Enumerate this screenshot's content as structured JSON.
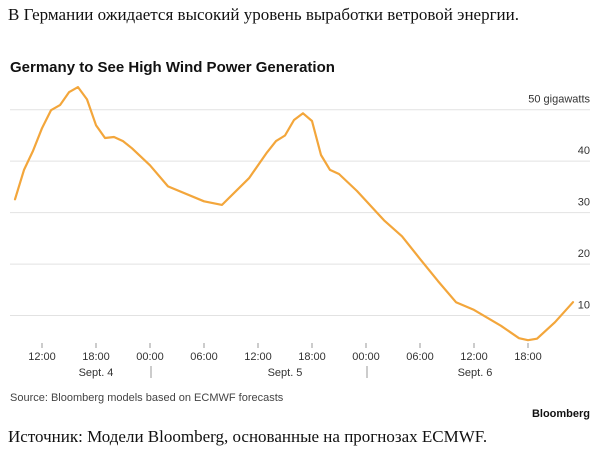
{
  "intro": "В Германии ожидается высокий уровень выработки ветровой энергии.",
  "chart_data": {
    "type": "line",
    "title": "Germany to See High Wind Power Generation",
    "x": [
      "Sept. 4 09:00",
      "Sept. 4 10:00",
      "Sept. 4 11:00",
      "Sept. 4 12:00",
      "Sept. 4 13:00",
      "Sept. 4 14:00",
      "Sept. 4 15:00",
      "Sept. 4 16:00",
      "Sept. 4 17:00",
      "Sept. 4 18:00",
      "Sept. 4 19:00",
      "Sept. 4 20:00",
      "Sept. 4 21:00",
      "Sept. 4 22:00",
      "Sept. 5 00:00",
      "Sept. 5 02:00",
      "Sept. 5 06:00",
      "Sept. 5 08:00",
      "Sept. 5 11:00",
      "Sept. 5 13:00",
      "Sept. 5 14:00",
      "Sept. 5 15:00",
      "Sept. 5 16:00",
      "Sept. 5 17:00",
      "Sept. 5 18:00",
      "Sept. 5 19:00",
      "Sept. 5 20:00",
      "Sept. 5 21:00",
      "Sept. 5 23:00",
      "Sept. 6 02:00",
      "Sept. 6 04:00",
      "Sept. 6 06:00",
      "Sept. 6 08:00",
      "Sept. 6 10:00",
      "Sept. 6 12:00",
      "Sept. 6 15:00",
      "Sept. 6 17:00",
      "Sept. 6 18:00",
      "Sept. 6 19:00",
      "Sept. 6 21:00",
      "Sept. 6 23:00"
    ],
    "series": [
      {
        "name": "Wind power generation",
        "color": "#f3a63b",
        "values": [
          32.6,
          38.3,
          42,
          46.4,
          49.9,
          50.9,
          53.4,
          54.4,
          52,
          47,
          44.5,
          44.7,
          43.9,
          42.5,
          39.2,
          35.1,
          32.2,
          31.5,
          36.7,
          41.7,
          43.9,
          45,
          48,
          49.3,
          47.8,
          41.2,
          38.3,
          37.5,
          34.2,
          28.5,
          25.4,
          21,
          16.7,
          12.6,
          11.1,
          8,
          5.6,
          5.2,
          5.5,
          8.7,
          12.6
        ]
      }
    ],
    "ylim": [
      4,
      55
    ],
    "yticks": [
      10,
      20,
      30,
      40,
      {
        "value": 50,
        "label": "50 gigawatts"
      }
    ],
    "xticks": [
      {
        "value": "Sept. 4 12:00",
        "label": "12:00"
      },
      {
        "value": "Sept. 4 18:00",
        "label": "18:00"
      },
      {
        "value": "Sept. 5 00:00",
        "label": "00:00"
      },
      {
        "value": "Sept. 5 06:00",
        "label": "06:00"
      },
      {
        "value": "Sept. 5 12:00",
        "label": "12:00"
      },
      {
        "value": "Sept. 5 18:00",
        "label": "18:00"
      },
      {
        "value": "Sept. 6 00:00",
        "label": "00:00"
      },
      {
        "value": "Sept. 6 06:00",
        "label": "06:00"
      },
      {
        "value": "Sept. 6 12:00",
        "label": "12:00"
      },
      {
        "value": "Sept. 6 18:00",
        "label": "18:00"
      }
    ],
    "days": [
      "Sept. 4",
      "Sept. 5",
      "Sept. 6"
    ],
    "grid": true,
    "source": "Source: Bloomberg models based on ECMWF forecasts",
    "brand": "Bloomberg"
  },
  "caption": "Источник: Модели Bloomberg, основанные на прогнозах ECMWF."
}
